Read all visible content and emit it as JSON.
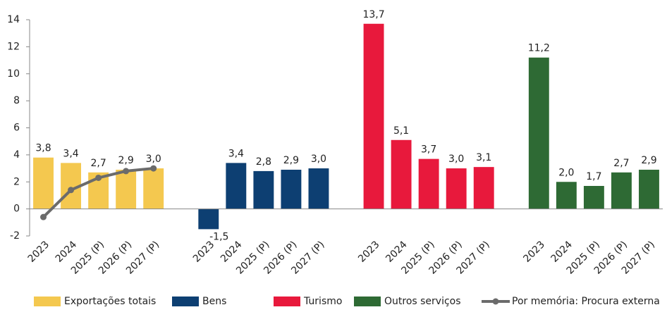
{
  "chart_data": {
    "type": "bar",
    "categories": [
      "2023",
      "2024",
      "2025 (P)",
      "2026 (P)",
      "2027 (P)"
    ],
    "series": [
      {
        "name": "Exportações totais",
        "color": "#f4c84f",
        "values": [
          3.8,
          3.4,
          2.7,
          2.9,
          3.0
        ],
        "value_labels": [
          "3,8",
          "3,4",
          "2,7",
          "2,9",
          "3,0"
        ]
      },
      {
        "name": "Bens",
        "color": "#0d3f72",
        "values": [
          -1.5,
          3.4,
          2.8,
          2.9,
          3.0
        ],
        "value_labels": [
          "-1,5",
          "3,4",
          "2,8",
          "2,9",
          "3,0"
        ]
      },
      {
        "name": "Turismo",
        "color": "#e8193c",
        "values": [
          13.7,
          5.1,
          3.7,
          3.0,
          3.1
        ],
        "value_labels": [
          "13,7",
          "5,1",
          "3,7",
          "3,0",
          "3,1"
        ]
      },
      {
        "name": "Outros serviços",
        "color": "#2e6a34",
        "values": [
          11.2,
          2.0,
          1.7,
          2.7,
          2.9
        ],
        "value_labels": [
          "11,2",
          "2,0",
          "1,7",
          "2,7",
          "2,9"
        ]
      },
      {
        "name": "Por memória: Procura externa",
        "type": "line",
        "color": "#6b6b6b",
        "values": [
          -0.6,
          1.4,
          2.3,
          2.8,
          3.0
        ]
      }
    ],
    "ylim": [
      -2,
      14
    ],
    "yticks": [
      -2,
      0,
      2,
      4,
      6,
      8,
      10,
      12,
      14
    ],
    "grid": false,
    "legend": "bottom"
  }
}
